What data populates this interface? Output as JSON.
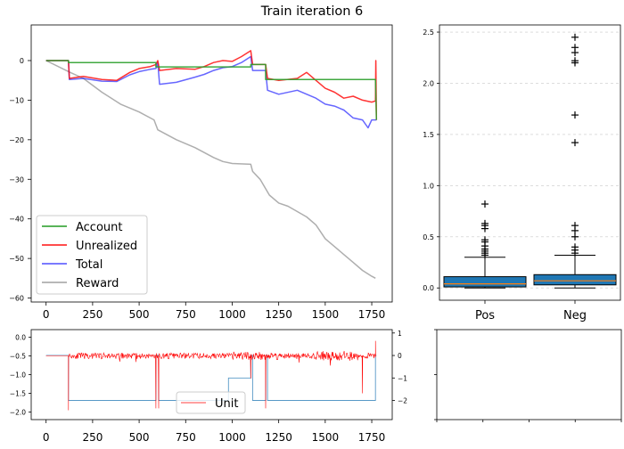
{
  "title": "Train iteration 6",
  "colors": {
    "account": "#2ca02c",
    "unrealized": "#ff0000",
    "total": "#0000ff",
    "reward": "#a0a0a0",
    "box_fill": "#1f77b4",
    "median": "#ff7f0e",
    "unit": "#ff0000",
    "position": "#1f77b4"
  },
  "chart_data": [
    {
      "id": "main",
      "type": "line",
      "xlim": [
        -80,
        1860
      ],
      "ylim": [
        -61,
        9
      ],
      "x_ticks": [
        "0",
        "250",
        "500",
        "750",
        "1000",
        "1250",
        "1500",
        "1750"
      ],
      "x_tick_values": [
        0,
        250,
        500,
        750,
        1000,
        1250,
        1500,
        1750
      ],
      "y_ticks": [
        "0",
        "−10",
        "−20",
        "−30",
        "−40",
        "−50",
        "−60"
      ],
      "y_tick_values": [
        0,
        -10,
        -20,
        -30,
        -40,
        -50,
        -60
      ],
      "legend": {
        "placement": "lower-left",
        "entries": [
          "Account",
          "Unrealized",
          "Total",
          "Reward"
        ]
      },
      "series": [
        {
          "name": "Account",
          "points": [
            [
              0,
              0
            ],
            [
              120,
              0
            ],
            [
              120,
              -0.5
            ],
            [
              590,
              -0.5
            ],
            [
              590,
              -1.6
            ],
            [
              1100,
              -1.6
            ],
            [
              1100,
              -1.0
            ],
            [
              1180,
              -1.0
            ],
            [
              1180,
              -4.8
            ],
            [
              1770,
              -4.8
            ],
            [
              1775,
              -15
            ]
          ]
        },
        {
          "name": "Unrealized",
          "points": [
            [
              0,
              0
            ],
            [
              120,
              0
            ],
            [
              125,
              -4.5
            ],
            [
              200,
              -4
            ],
            [
              300,
              -4.8
            ],
            [
              380,
              -5
            ],
            [
              450,
              -3
            ],
            [
              500,
              -2
            ],
            [
              560,
              -1.5
            ],
            [
              590,
              -1.0
            ],
            [
              600,
              0
            ],
            [
              610,
              -2.5
            ],
            [
              700,
              -2
            ],
            [
              800,
              -2.2
            ],
            [
              850,
              -1.5
            ],
            [
              900,
              -0.5
            ],
            [
              950,
              0
            ],
            [
              1000,
              -0.2
            ],
            [
              1050,
              1
            ],
            [
              1100,
              2.5
            ],
            [
              1110,
              -1
            ],
            [
              1180,
              -1
            ],
            [
              1190,
              -4.5
            ],
            [
              1250,
              -5
            ],
            [
              1350,
              -4.5
            ],
            [
              1400,
              -3
            ],
            [
              1450,
              -5
            ],
            [
              1500,
              -7
            ],
            [
              1550,
              -8
            ],
            [
              1600,
              -9.5
            ],
            [
              1650,
              -9
            ],
            [
              1700,
              -10
            ],
            [
              1750,
              -10.5
            ],
            [
              1770,
              -10.2
            ],
            [
              1772,
              0
            ],
            [
              1775,
              -15
            ]
          ]
        },
        {
          "name": "Total",
          "points": [
            [
              0,
              0
            ],
            [
              120,
              0
            ],
            [
              125,
              -4.8
            ],
            [
              200,
              -4.5
            ],
            [
              300,
              -5.2
            ],
            [
              380,
              -5.3
            ],
            [
              450,
              -3.6
            ],
            [
              500,
              -2.8
            ],
            [
              560,
              -2.2
            ],
            [
              590,
              -2
            ],
            [
              600,
              -0.5
            ],
            [
              610,
              -6
            ],
            [
              700,
              -5.5
            ],
            [
              800,
              -4.2
            ],
            [
              850,
              -3.5
            ],
            [
              900,
              -2.5
            ],
            [
              950,
              -1.8
            ],
            [
              1000,
              -1.5
            ],
            [
              1050,
              -0.5
            ],
            [
              1100,
              1
            ],
            [
              1110,
              -2.5
            ],
            [
              1180,
              -2.5
            ],
            [
              1190,
              -7.5
            ],
            [
              1250,
              -8.5
            ],
            [
              1350,
              -7.5
            ],
            [
              1450,
              -9.5
            ],
            [
              1500,
              -11
            ],
            [
              1550,
              -11.5
            ],
            [
              1600,
              -12.5
            ],
            [
              1650,
              -14.5
            ],
            [
              1700,
              -15
            ],
            [
              1730,
              -17
            ],
            [
              1750,
              -15
            ],
            [
              1775,
              -15
            ]
          ]
        },
        {
          "name": "Reward",
          "points": [
            [
              0,
              0
            ],
            [
              130,
              -3
            ],
            [
              200,
              -4.5
            ],
            [
              300,
              -8
            ],
            [
              400,
              -11
            ],
            [
              500,
              -13
            ],
            [
              580,
              -15
            ],
            [
              600,
              -17.5
            ],
            [
              700,
              -20
            ],
            [
              800,
              -22
            ],
            [
              900,
              -24.5
            ],
            [
              950,
              -25.5
            ],
            [
              1000,
              -26
            ],
            [
              1100,
              -26.2
            ],
            [
              1110,
              -28
            ],
            [
              1150,
              -30
            ],
            [
              1200,
              -34
            ],
            [
              1250,
              -36
            ],
            [
              1300,
              -36.8
            ],
            [
              1400,
              -39.5
            ],
            [
              1450,
              -41.5
            ],
            [
              1500,
              -45
            ],
            [
              1550,
              -47
            ],
            [
              1600,
              -49
            ],
            [
              1650,
              -51
            ],
            [
              1700,
              -53
            ],
            [
              1750,
              -54.5
            ],
            [
              1770,
              -55
            ]
          ]
        }
      ]
    },
    {
      "id": "box",
      "type": "box",
      "categories": [
        "Pos",
        "Neg"
      ],
      "ylim": [
        -0.12,
        2.57
      ],
      "y_ticks": [
        "0.0",
        "0.5",
        "1.0",
        "1.5",
        "2.0",
        "2.5"
      ],
      "y_tick_values": [
        0,
        0.5,
        1.0,
        1.5,
        2.0,
        2.5
      ],
      "grid": "horizontal-dashed",
      "boxes": [
        {
          "name": "Pos",
          "whislo": 0,
          "q1": 0.01,
          "med": 0.04,
          "q3": 0.11,
          "whishi": 0.3,
          "fliers": [
            0.32,
            0.34,
            0.36,
            0.38,
            0.41,
            0.45,
            0.47,
            0.58,
            0.61,
            0.63,
            0.82
          ]
        },
        {
          "name": "Neg",
          "whislo": 0,
          "q1": 0.03,
          "med": 0.07,
          "q3": 0.13,
          "whishi": 0.32,
          "fliers": [
            0.34,
            0.37,
            0.4,
            0.5,
            0.56,
            0.61,
            1.42,
            1.69,
            2.2,
            2.22,
            2.3,
            2.35,
            2.45
          ]
        }
      ]
    },
    {
      "id": "bottom",
      "type": "line",
      "xlim": [
        -80,
        1860
      ],
      "ylim_left": [
        -2.2,
        0.2
      ],
      "ylim_right": [
        -2.85,
        1.15
      ],
      "x_ticks": [
        "0",
        "250",
        "500",
        "750",
        "1000",
        "1250",
        "1500",
        "1750"
      ],
      "x_tick_values": [
        0,
        250,
        500,
        750,
        1000,
        1250,
        1500,
        1750
      ],
      "y_ticks_left": [
        "0.0",
        "−0.5",
        "−1.0",
        "−1.5",
        "−2.0"
      ],
      "y_tick_values_left": [
        0,
        -0.5,
        -1.0,
        -1.5,
        -2.0
      ],
      "y_ticks_right": [
        "1",
        "0",
        "−1",
        "−2"
      ],
      "y_tick_values_right": [
        1,
        0,
        -1,
        -2
      ],
      "legend": {
        "placement": "lower-center",
        "entries": [
          "Unit"
        ]
      },
      "position_steps": [
        [
          0,
          0
        ],
        [
          120,
          0
        ],
        [
          120,
          -2
        ],
        [
          590,
          -2
        ],
        [
          590,
          0
        ],
        [
          605,
          0
        ],
        [
          605,
          -2
        ],
        [
          980,
          -2
        ],
        [
          980,
          -1
        ],
        [
          1100,
          -1
        ],
        [
          1100,
          0
        ],
        [
          1110,
          0
        ],
        [
          1110,
          -2
        ],
        [
          1180,
          -2
        ],
        [
          1180,
          0
        ],
        [
          1190,
          0
        ],
        [
          1190,
          -2
        ],
        [
          1770,
          -2
        ],
        [
          1770,
          0
        ],
        [
          1775,
          0
        ]
      ],
      "unit_spikes": [
        [
          120,
          -1.95
        ],
        [
          590,
          -1.9
        ],
        [
          605,
          -1.9
        ],
        [
          1100,
          -1.1
        ],
        [
          1180,
          -1.9
        ],
        [
          1700,
          -1.5
        ],
        [
          1770,
          -0.1
        ]
      ]
    },
    {
      "id": "empty",
      "type": "blank",
      "x_tick_count": 5,
      "y_tick_count": 3
    }
  ]
}
